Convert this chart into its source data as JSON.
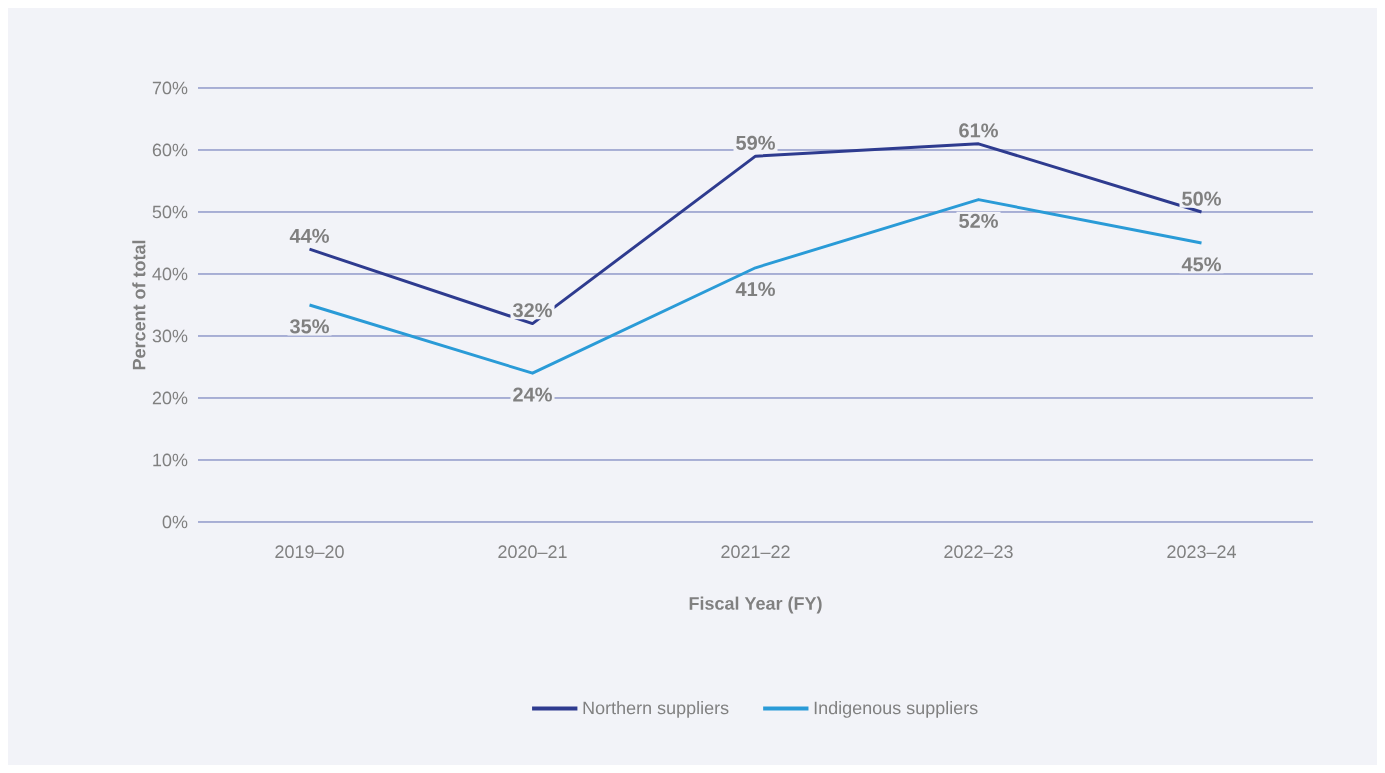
{
  "chart_data": {
    "type": "line",
    "xlabel": "Fiscal Year (FY)",
    "ylabel": "Percent of total",
    "categories": [
      "2019–20",
      "2020–21",
      "2021–22",
      "2022–23",
      "2023–24"
    ],
    "series": [
      {
        "name": "Northern suppliers",
        "color": "#2e3b8f",
        "values": [
          44,
          32,
          59,
          61,
          50
        ],
        "value_labels": [
          "44%",
          "32%",
          "59%",
          "61%",
          "50%"
        ]
      },
      {
        "name": "Indigenous suppliers",
        "color": "#2a9bd7",
        "values": [
          35,
          24,
          41,
          52,
          45
        ],
        "value_labels": [
          "35%",
          "24%",
          "41%",
          "52%",
          "45%"
        ]
      }
    ],
    "ylim": [
      0,
      70
    ],
    "yticks": [
      {
        "value": 0,
        "label": "0%"
      },
      {
        "value": 10,
        "label": "10%"
      },
      {
        "value": 20,
        "label": "20%"
      },
      {
        "value": 30,
        "label": "30%"
      },
      {
        "value": 40,
        "label": "40%"
      },
      {
        "value": 50,
        "label": "50%"
      },
      {
        "value": 60,
        "label": "60%"
      },
      {
        "value": 70,
        "label": "70%"
      }
    ],
    "grid": "y",
    "legend": "bottom"
  }
}
